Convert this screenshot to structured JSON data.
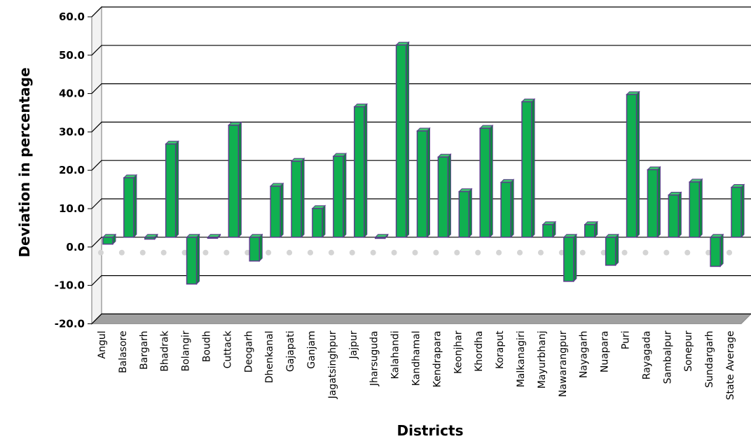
{
  "chart_data": {
    "type": "bar",
    "title": "",
    "xlabel": "Districts",
    "ylabel": "Deviation in percentage",
    "ylim": [
      -20,
      60
    ],
    "yticks": [
      "60.0",
      "50.0",
      "40.0",
      "30.0",
      "20.0",
      "10.0",
      "0.0",
      "-10.0",
      "-20.0"
    ],
    "grid": true,
    "colors": {
      "bar": "#10b050",
      "bar_edge": "#5b3d8a",
      "wall": "#a0a0a0"
    },
    "categories": [
      "Angul",
      "Balasore",
      "Bargarh",
      "Bhadrak",
      "Bolangir",
      "Boudh",
      "Cuttack",
      "Deogarh",
      "Dhenkanal",
      "Gajapati",
      "Ganjam",
      "Jagatsinghpur",
      "Jajpur",
      "Jharsuguda",
      "Kalahandi",
      "Kandhamal",
      "Kendrapara",
      "Keonjhar",
      "Khordha",
      "Koraput",
      "Malkanagiri",
      "Mayurbhanj",
      "Nawarangpur",
      "Nayagarh",
      "Nuapara",
      "Puri",
      "Rayagada",
      "Sambalpur",
      "Sonepur",
      "Sundargarh",
      "State Average"
    ],
    "values": [
      -1.8,
      15.5,
      -0.5,
      24.3,
      -12.2,
      -0.2,
      29.2,
      -6.2,
      13.3,
      19.8,
      7.5,
      21.1,
      34.0,
      -0.3,
      50.1,
      27.7,
      20.9,
      11.9,
      28.4,
      14.3,
      35.3,
      3.3,
      -11.5,
      3.3,
      -7.3,
      37.2,
      17.6,
      11.0,
      14.4,
      -7.6,
      13.0
    ]
  }
}
